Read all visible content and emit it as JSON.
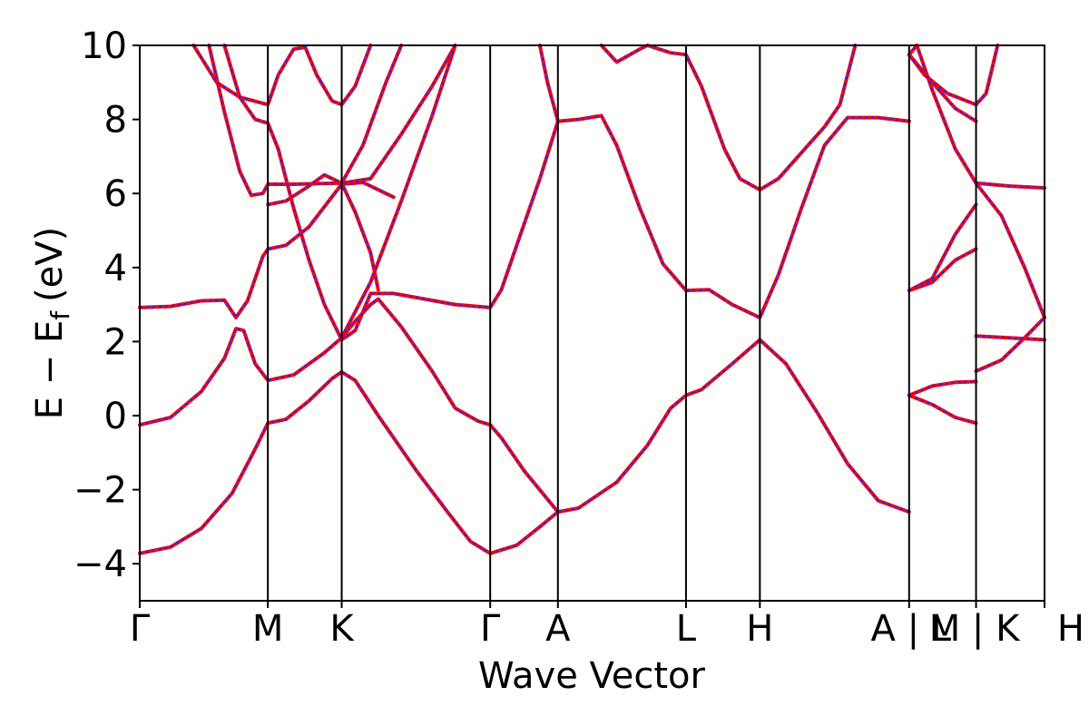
{
  "chart_data": {
    "type": "line",
    "title": "",
    "xlabel": "Wave Vector",
    "ylabel_main": "E − E",
    "ylabel_sub": "f",
    "ylabel_unit": "(eV)",
    "ylim": [
      -5,
      10
    ],
    "xlim": [
      0,
      1
    ],
    "yticks": [
      -4,
      -2,
      0,
      2,
      4,
      6,
      8,
      10
    ],
    "ytick_labels": [
      "−4",
      "−2",
      "0",
      "2",
      "4",
      "6",
      "8",
      "10"
    ],
    "kpoints": [
      {
        "label": "Γ",
        "x": 0.0
      },
      {
        "label": "M",
        "x": 0.1665
      },
      {
        "label": "K",
        "x": 0.2625
      },
      {
        "label": "Γ",
        "x": 0.4555
      },
      {
        "label": "A",
        "x": 0.5435
      },
      {
        "label": "L",
        "x": 0.71
      },
      {
        "label": "H",
        "x": 0.806
      },
      {
        "label": "A |  L",
        "x": 1.0
      },
      {
        "label": "M | K",
        "x": 1.087
      },
      {
        "label": "H",
        "x": 1.176
      }
    ],
    "series_colors": {
      "line": "#ff0000",
      "overlay": "#1f2bff"
    },
    "bands": [
      [
        [
          0,
          -3.72
        ],
        [
          0.04,
          -3.55
        ],
        [
          0.08,
          -3.05
        ],
        [
          0.12,
          -2.1
        ],
        [
          0.15,
          -0.9
        ],
        [
          0.1665,
          -0.2
        ],
        [
          0.19,
          -0.1
        ],
        [
          0.22,
          0.4
        ],
        [
          0.25,
          1.0
        ],
        [
          0.2625,
          1.18
        ],
        [
          0.28,
          0.95
        ],
        [
          0.31,
          0.0
        ],
        [
          0.36,
          -1.5
        ],
        [
          0.4,
          -2.6
        ],
        [
          0.43,
          -3.4
        ],
        [
          0.4555,
          -3.72
        ],
        [
          0.49,
          -3.5
        ],
        [
          0.52,
          -3.0
        ],
        [
          0.5435,
          -2.6
        ],
        [
          0.57,
          -2.5
        ],
        [
          0.62,
          -1.8
        ],
        [
          0.66,
          -0.8
        ],
        [
          0.69,
          0.2
        ],
        [
          0.71,
          0.55
        ],
        [
          0.73,
          0.7
        ],
        [
          0.77,
          1.4
        ],
        [
          0.806,
          2.05
        ],
        [
          0.84,
          1.4
        ],
        [
          0.88,
          0.1
        ],
        [
          0.92,
          -1.3
        ],
        [
          0.96,
          -2.3
        ],
        [
          1.0,
          -2.6
        ]
      ],
      [
        [
          0,
          -0.25
        ],
        [
          0.04,
          -0.05
        ],
        [
          0.08,
          0.65
        ],
        [
          0.11,
          1.55
        ],
        [
          0.125,
          2.35
        ],
        [
          0.135,
          2.3
        ],
        [
          0.15,
          1.4
        ],
        [
          0.1665,
          0.95
        ],
        [
          0.2,
          1.1
        ],
        [
          0.24,
          1.7
        ],
        [
          0.2625,
          2.1
        ],
        [
          0.28,
          2.55
        ],
        [
          0.3,
          3.0
        ],
        [
          0.31,
          3.15
        ],
        [
          0.34,
          2.4
        ],
        [
          0.38,
          1.2
        ],
        [
          0.41,
          0.2
        ],
        [
          0.44,
          -0.15
        ],
        [
          0.4555,
          -0.25
        ],
        [
          0.47,
          -0.6
        ],
        [
          0.5,
          -1.5
        ],
        [
          0.5435,
          -2.6
        ]
      ],
      [
        [
          0,
          2.92
        ],
        [
          0.04,
          2.95
        ],
        [
          0.08,
          3.1
        ],
        [
          0.11,
          3.12
        ],
        [
          0.125,
          2.65
        ],
        [
          0.14,
          3.1
        ],
        [
          0.16,
          4.3
        ],
        [
          0.1665,
          4.5
        ],
        [
          0.19,
          4.6
        ],
        [
          0.22,
          5.1
        ],
        [
          0.2625,
          6.25
        ],
        [
          0.29,
          6.3
        ],
        [
          0.31,
          6.1
        ],
        [
          0.33,
          5.9
        ]
      ],
      [
        [
          0.09,
          10
        ],
        [
          0.11,
          8.2
        ],
        [
          0.13,
          6.6
        ],
        [
          0.145,
          5.95
        ],
        [
          0.16,
          6.0
        ],
        [
          0.1665,
          6.25
        ],
        [
          0.2,
          6.25
        ],
        [
          0.2625,
          6.28
        ],
        [
          0.3,
          6.4
        ],
        [
          0.34,
          7.6
        ],
        [
          0.38,
          8.9
        ],
        [
          0.41,
          10
        ]
      ],
      [
        [
          0.11,
          10
        ],
        [
          0.13,
          8.6
        ],
        [
          0.15,
          8.0
        ],
        [
          0.1665,
          7.9
        ],
        [
          0.18,
          7.2
        ],
        [
          0.2,
          5.6
        ],
        [
          0.22,
          4.2
        ],
        [
          0.24,
          3.0
        ],
        [
          0.2625,
          2.05
        ],
        [
          0.28,
          2.3
        ],
        [
          0.3,
          3.3
        ],
        [
          0.33,
          3.3
        ],
        [
          0.37,
          3.15
        ],
        [
          0.41,
          3.0
        ],
        [
          0.4555,
          2.92
        ],
        [
          0.47,
          3.4
        ],
        [
          0.49,
          4.6
        ],
        [
          0.52,
          6.4
        ],
        [
          0.5435,
          7.95
        ],
        [
          0.57,
          8.0
        ],
        [
          0.6,
          8.1
        ],
        [
          0.62,
          7.3
        ],
        [
          0.65,
          5.6
        ],
        [
          0.68,
          4.1
        ],
        [
          0.71,
          3.38
        ],
        [
          0.74,
          3.4
        ],
        [
          0.77,
          3.0
        ],
        [
          0.806,
          2.65
        ],
        [
          0.83,
          3.8
        ],
        [
          0.86,
          5.6
        ],
        [
          0.89,
          7.3
        ],
        [
          0.92,
          8.05
        ],
        [
          0.96,
          8.05
        ],
        [
          1.0,
          7.95
        ]
      ],
      [
        [
          0.07,
          10
        ],
        [
          0.1,
          9.0
        ],
        [
          0.13,
          8.6
        ],
        [
          0.1665,
          8.4
        ],
        [
          0.18,
          9.2
        ],
        [
          0.2,
          9.9
        ],
        [
          0.215,
          9.95
        ],
        [
          0.23,
          9.2
        ],
        [
          0.25,
          8.5
        ],
        [
          0.2625,
          8.4
        ],
        [
          0.28,
          8.9
        ],
        [
          0.3,
          10
        ]
      ],
      [
        [
          0.1665,
          5.7
        ],
        [
          0.19,
          5.8
        ],
        [
          0.22,
          6.2
        ],
        [
          0.24,
          6.5
        ],
        [
          0.2625,
          6.28
        ],
        [
          0.28,
          5.5
        ],
        [
          0.3,
          4.4
        ],
        [
          0.31,
          3.4
        ]
      ],
      [
        [
          0.2625,
          6.28
        ],
        [
          0.29,
          7.3
        ],
        [
          0.32,
          9.0
        ],
        [
          0.34,
          10
        ]
      ],
      [
        [
          0.2625,
          2.1
        ],
        [
          0.3,
          3.6
        ],
        [
          0.34,
          5.8
        ],
        [
          0.38,
          8.1
        ],
        [
          0.41,
          10
        ]
      ],
      [
        [
          0.52,
          10
        ],
        [
          0.53,
          9.0
        ],
        [
          0.5435,
          7.95
        ]
      ],
      [
        [
          0.6,
          10
        ],
        [
          0.62,
          9.55
        ],
        [
          0.65,
          9.9
        ],
        [
          0.66,
          10
        ],
        [
          0.69,
          9.8
        ],
        [
          0.71,
          9.75
        ],
        [
          0.73,
          8.9
        ],
        [
          0.76,
          7.2
        ],
        [
          0.78,
          6.4
        ],
        [
          0.806,
          6.1
        ],
        [
          0.83,
          6.4
        ],
        [
          0.86,
          7.1
        ],
        [
          0.89,
          7.8
        ],
        [
          0.91,
          8.4
        ],
        [
          0.93,
          10
        ]
      ],
      [
        [
          1.0,
          0.55
        ],
        [
          1.03,
          0.8
        ],
        [
          1.06,
          0.9
        ],
        [
          1.087,
          0.92
        ]
      ],
      [
        [
          1.0,
          0.55
        ],
        [
          1.03,
          0.3
        ],
        [
          1.06,
          -0.05
        ],
        [
          1.087,
          -0.2
        ]
      ],
      [
        [
          1.0,
          3.38
        ],
        [
          1.03,
          3.6
        ],
        [
          1.06,
          4.2
        ],
        [
          1.087,
          4.5
        ]
      ],
      [
        [
          1.0,
          3.38
        ],
        [
          1.03,
          3.7
        ],
        [
          1.06,
          4.9
        ],
        [
          1.087,
          5.7
        ]
      ],
      [
        [
          1.0,
          9.75
        ],
        [
          1.02,
          9.2
        ],
        [
          1.05,
          8.7
        ],
        [
          1.087,
          8.4
        ],
        [
          1.1,
          8.7
        ],
        [
          1.115,
          10
        ]
      ],
      [
        [
          1.0,
          9.75
        ],
        [
          1.03,
          9.0
        ],
        [
          1.06,
          8.3
        ],
        [
          1.087,
          7.95
        ]
      ],
      [
        [
          1.01,
          10
        ],
        [
          1.03,
          8.8
        ],
        [
          1.06,
          7.2
        ],
        [
          1.087,
          6.28
        ],
        [
          1.12,
          5.4
        ],
        [
          1.15,
          4.0
        ],
        [
          1.176,
          2.65
        ]
      ],
      [
        [
          1.0,
          9.75
        ],
        [
          1.01,
          10
        ]
      ],
      [
        [
          1.087,
          6.28
        ],
        [
          1.13,
          6.2
        ],
        [
          1.176,
          6.15
        ]
      ],
      [
        [
          1.087,
          1.2
        ],
        [
          1.12,
          1.5
        ],
        [
          1.15,
          2.1
        ],
        [
          1.176,
          2.65
        ]
      ],
      [
        [
          1.087,
          2.15
        ],
        [
          1.13,
          2.1
        ],
        [
          1.176,
          2.05
        ]
      ]
    ]
  }
}
